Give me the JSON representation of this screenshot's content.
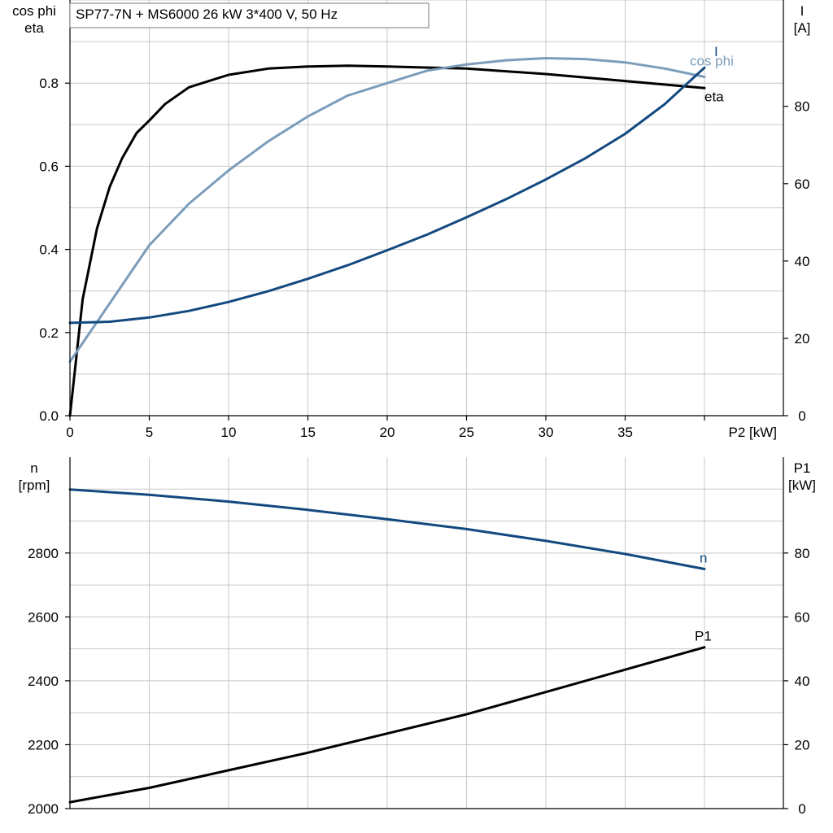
{
  "title": "SP77-7N + MS6000   26 kW   3*400 V, 50 Hz",
  "colors": {
    "dark_blue": "#13497f",
    "light_blue": "#7b9dbb",
    "black": "#000000",
    "grid": "#c8c8c8"
  },
  "chart_data": [
    {
      "type": "line",
      "x_label": "P2 [kW]",
      "x_ticks": [
        "0",
        "5",
        "10",
        "15",
        "20",
        "25",
        "30",
        "35"
      ],
      "xlim": [
        0,
        45
      ],
      "grid": true,
      "left_axis": {
        "label_lines": [
          "cos phi",
          "eta"
        ],
        "ylim": [
          0,
          1.0
        ],
        "ticks": [
          "0.0",
          "0.2",
          "0.4",
          "0.6",
          "0.8"
        ]
      },
      "right_axis": {
        "label_lines": [
          "I",
          "[A]"
        ],
        "ylim": [
          0,
          107.5
        ],
        "ticks": [
          "0",
          "20",
          "40",
          "60",
          "80"
        ]
      },
      "series": [
        {
          "name": "eta",
          "axis": "left",
          "color": "black",
          "x": [
            0,
            0.8,
            1.7,
            2.5,
            3.3,
            4.2,
            5,
            6,
            7.5,
            10,
            12.5,
            15,
            17.5,
            20,
            25,
            30,
            35,
            40
          ],
          "y": [
            0.0,
            0.28,
            0.45,
            0.55,
            0.62,
            0.68,
            0.71,
            0.75,
            0.79,
            0.82,
            0.835,
            0.84,
            0.842,
            0.84,
            0.835,
            0.822,
            0.805,
            0.788
          ]
        },
        {
          "name": "cos phi",
          "axis": "left",
          "color": "light_blue",
          "x": [
            0,
            2.5,
            5,
            7.5,
            10,
            12.5,
            15,
            17.5,
            20,
            22.5,
            25,
            27.5,
            30,
            32.5,
            35,
            37.5,
            40
          ],
          "y": [
            0.13,
            0.27,
            0.41,
            0.51,
            0.59,
            0.66,
            0.72,
            0.77,
            0.8,
            0.83,
            0.845,
            0.855,
            0.86,
            0.858,
            0.85,
            0.835,
            0.815
          ]
        },
        {
          "name": "I",
          "axis": "right",
          "color": "dark_blue",
          "x": [
            0,
            2.5,
            5,
            7.5,
            10,
            12.5,
            15,
            17.5,
            20,
            22.5,
            25,
            27.5,
            30,
            32.5,
            35,
            37.5,
            40
          ],
          "y": [
            24,
            24.3,
            25.4,
            27.1,
            29.4,
            32.2,
            35.4,
            38.9,
            42.8,
            46.8,
            51.3,
            56.0,
            61.1,
            66.6,
            72.9,
            80.6,
            90
          ]
        }
      ]
    },
    {
      "type": "line",
      "xlim": [
        0,
        45
      ],
      "grid": true,
      "left_axis": {
        "label_lines": [
          "n",
          "[rpm]"
        ],
        "ylim": [
          2000,
          3100
        ],
        "ticks": [
          "2000",
          "2200",
          "2400",
          "2600",
          "2800"
        ]
      },
      "right_axis": {
        "label_lines": [
          "P1",
          "[kW]"
        ],
        "ylim": [
          0,
          110
        ],
        "ticks": [
          "0",
          "20",
          "40",
          "60",
          "80"
        ]
      },
      "series": [
        {
          "name": "n",
          "axis": "left",
          "color": "dark_blue",
          "x": [
            0,
            5,
            10,
            15,
            20,
            25,
            30,
            35,
            40
          ],
          "y": [
            2999,
            2982,
            2961,
            2935,
            2906,
            2875,
            2838,
            2797,
            2750
          ]
        },
        {
          "name": "P1",
          "axis": "right",
          "color": "black",
          "x": [
            0,
            5,
            10,
            15,
            20,
            25,
            30,
            35,
            40
          ],
          "y": [
            2,
            6.5,
            12,
            17.5,
            23.5,
            29.5,
            36.5,
            43.5,
            50.5
          ]
        }
      ]
    }
  ]
}
